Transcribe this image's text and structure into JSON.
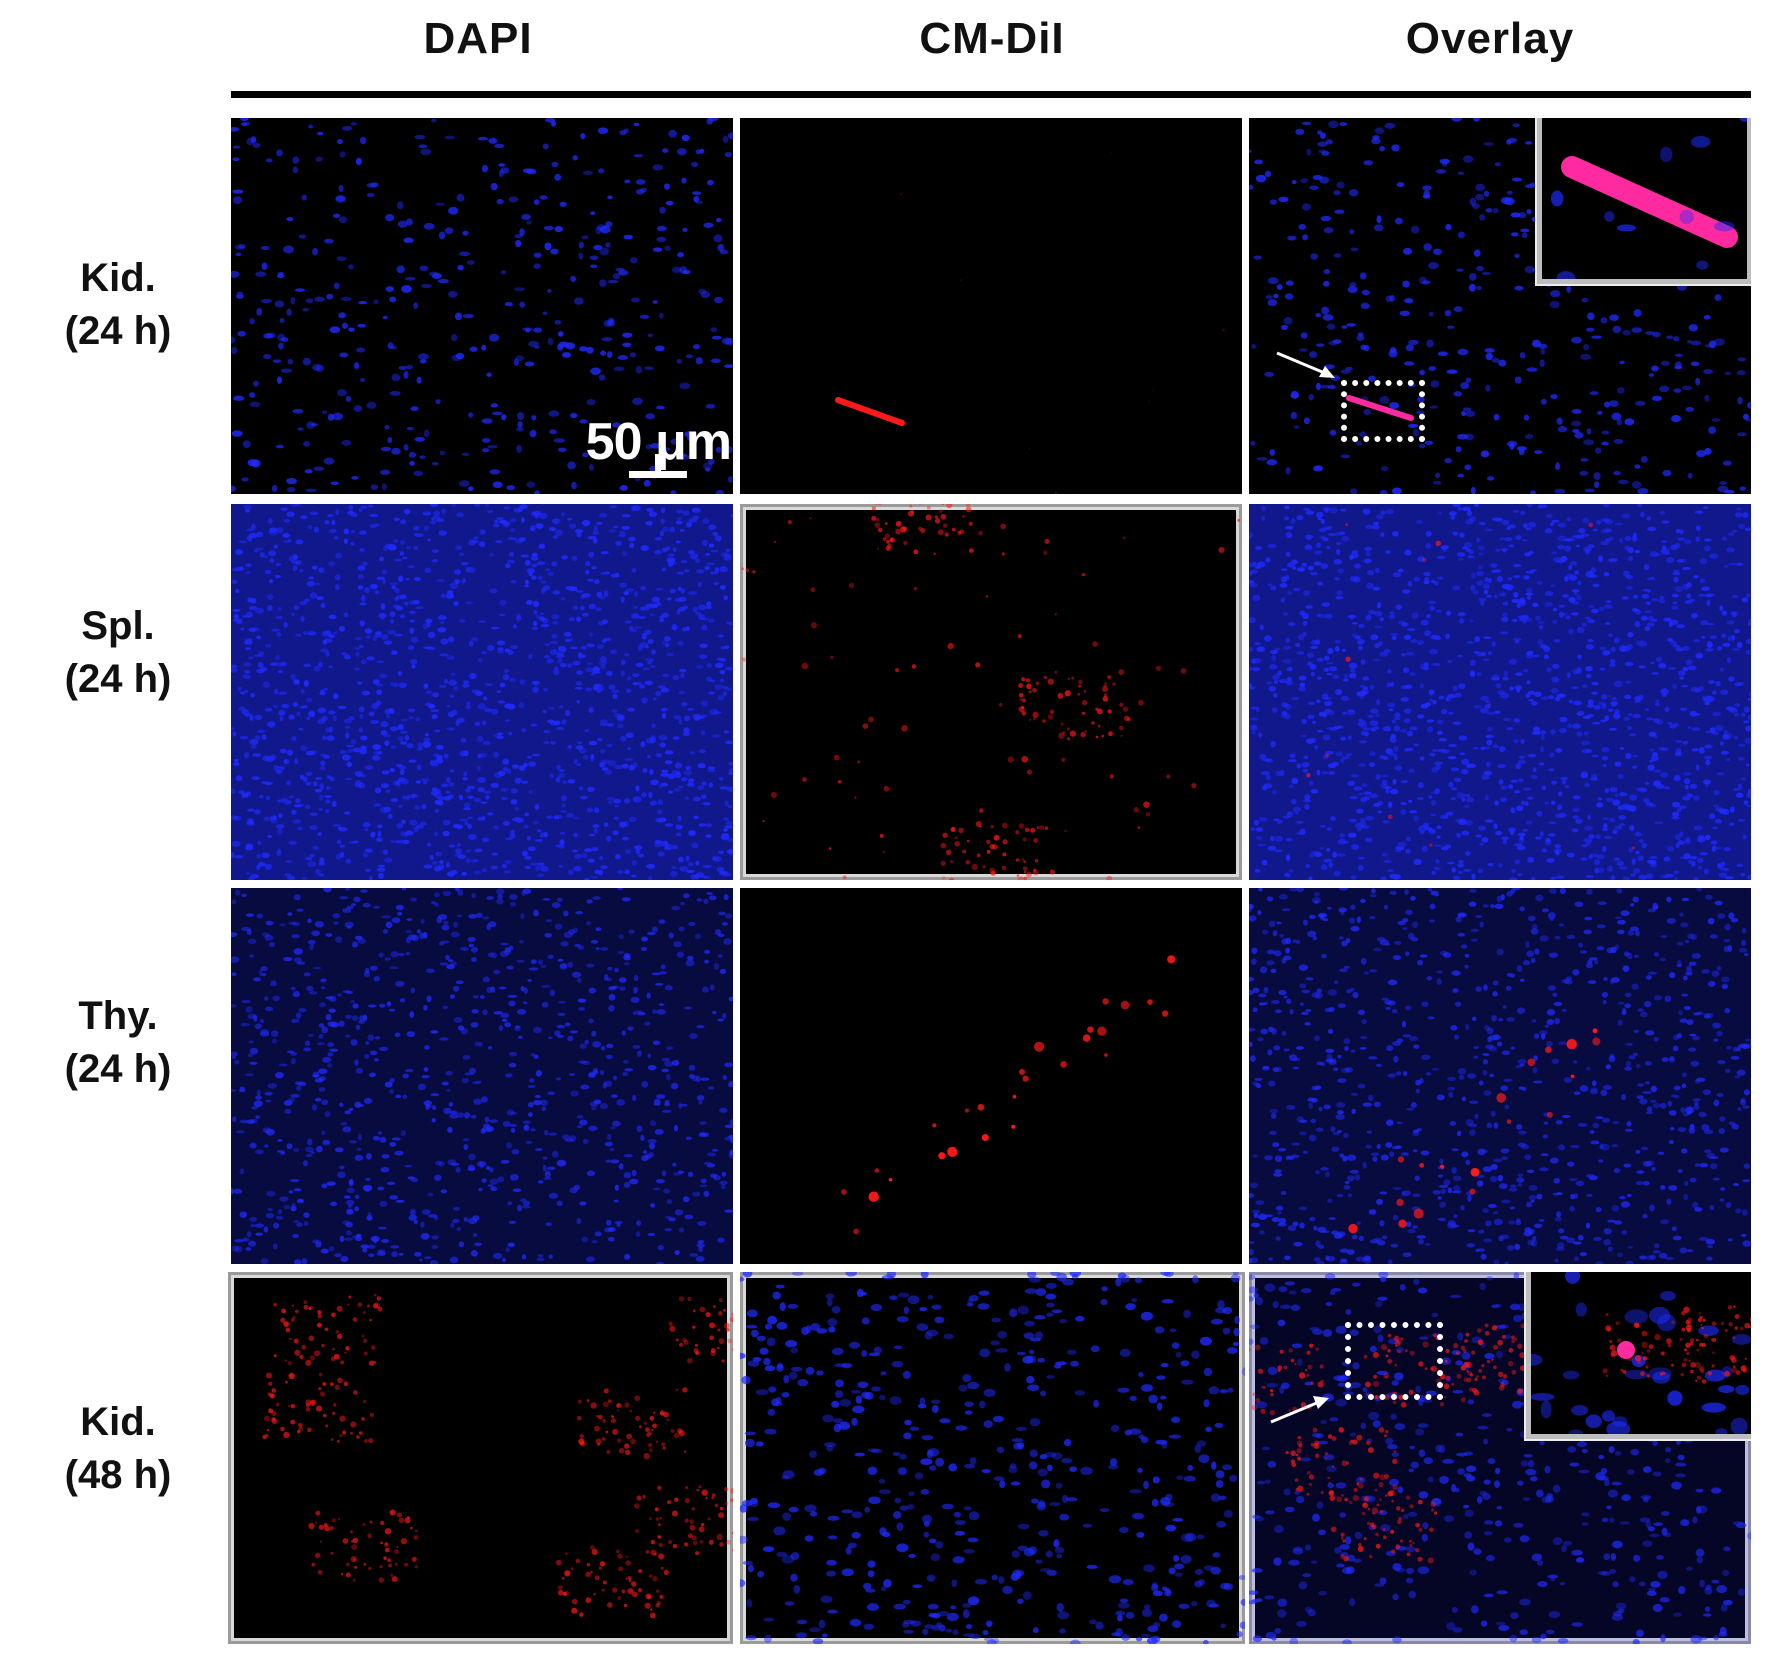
{
  "columns": [
    "DAPI",
    "CM-DiI",
    "Overlay"
  ],
  "rows": [
    {
      "tissue": "Kid.",
      "time": "(24 h)"
    },
    {
      "tissue": "Spl.",
      "time": "(24 h)"
    },
    {
      "tissue": "Thy.",
      "time": "(24 h)"
    },
    {
      "tissue": "Kid.",
      "time": "(48 h)"
    }
  ],
  "scale_bar": {
    "label": "50 μm"
  },
  "stain_colors": {
    "nuclei": "#1f2bff",
    "cm_dii": "#ff1a1a",
    "merged": "#ff2aa0",
    "background": "#000000",
    "annotation": "#ffffff"
  },
  "annotations": [
    {
      "panel": "row1-overlay",
      "items": [
        "arrow-icon",
        "dotted-roi-box",
        "magnified-inset"
      ]
    },
    {
      "panel": "row4-overlay",
      "items": [
        "arrow-icon",
        "dotted-roi-box",
        "magnified-inset"
      ]
    }
  ]
}
